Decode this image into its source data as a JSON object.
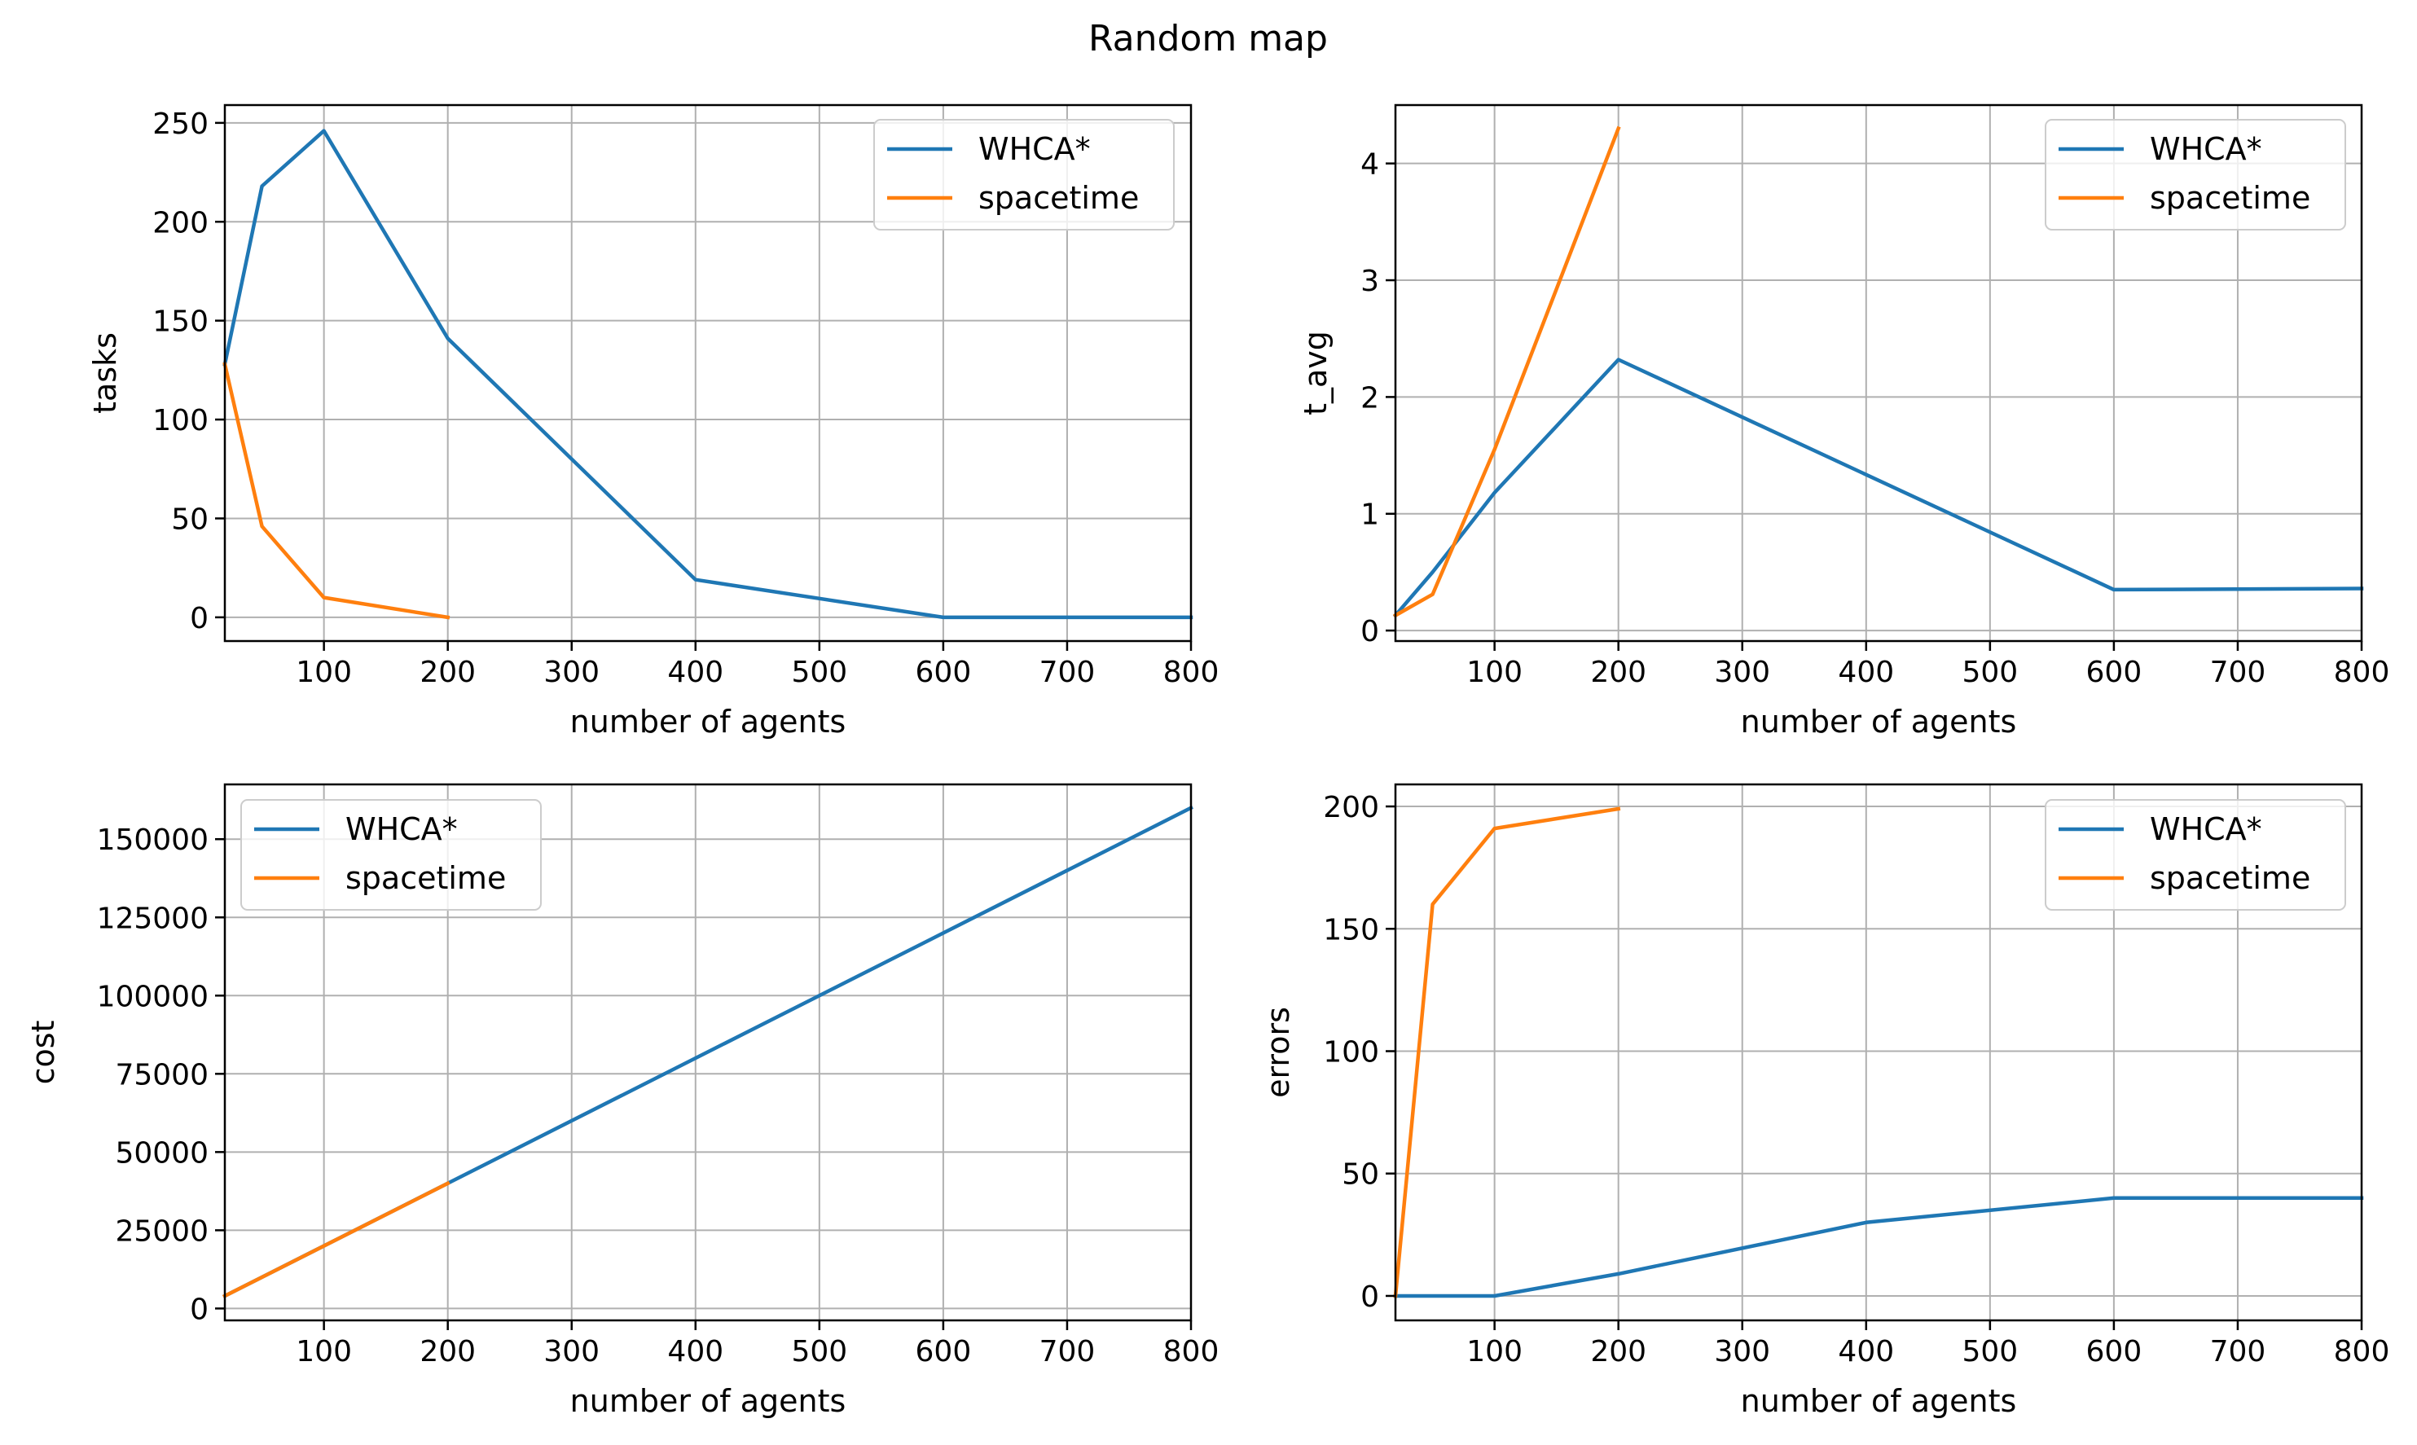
{
  "figure": {
    "title": "Random map"
  },
  "colors": {
    "whca": "#1f77b4",
    "spacetime": "#ff7f0e",
    "grid": "#b0b0b0",
    "frame": "#000000"
  },
  "chart_data": [
    {
      "id": "tasks",
      "type": "line",
      "xlabel": "number of agents",
      "ylabel": "tasks",
      "xlim": [
        20,
        800
      ],
      "ylim": [
        -12,
        259
      ],
      "xticks": [
        100,
        200,
        300,
        400,
        500,
        600,
        700,
        800
      ],
      "yticks": [
        0,
        50,
        100,
        150,
        200,
        250
      ],
      "grid": true,
      "legend": "top-right",
      "series": [
        {
          "name": "WHCA*",
          "color": "#1f77b4",
          "x": [
            20,
            50,
            100,
            200,
            400,
            600,
            800
          ],
          "y": [
            128,
            218,
            246,
            141,
            19,
            0,
            0
          ]
        },
        {
          "name": "spacetime",
          "color": "#ff7f0e",
          "x": [
            20,
            50,
            100,
            200
          ],
          "y": [
            128,
            46,
            10,
            0
          ]
        }
      ]
    },
    {
      "id": "t_avg",
      "type": "line",
      "xlabel": "number of agents",
      "ylabel": "t_avg",
      "xlim": [
        20,
        800
      ],
      "ylim": [
        -0.09,
        4.5
      ],
      "xticks": [
        100,
        200,
        300,
        400,
        500,
        600,
        700,
        800
      ],
      "yticks": [
        0,
        1,
        2,
        3,
        4
      ],
      "grid": true,
      "legend": "top-right",
      "series": [
        {
          "name": "WHCA*",
          "color": "#1f77b4",
          "x": [
            20,
            50,
            100,
            200,
            600,
            800
          ],
          "y": [
            0.13,
            0.5,
            1.18,
            2.32,
            0.35,
            0.36
          ]
        },
        {
          "name": "spacetime",
          "color": "#ff7f0e",
          "x": [
            20,
            50,
            100,
            200
          ],
          "y": [
            0.13,
            0.31,
            1.55,
            4.3
          ]
        }
      ]
    },
    {
      "id": "cost",
      "type": "line",
      "xlabel": "number of agents",
      "ylabel": "cost",
      "xlim": [
        20,
        800
      ],
      "ylim": [
        -3800,
        167500
      ],
      "xticks": [
        100,
        200,
        300,
        400,
        500,
        600,
        700,
        800
      ],
      "yticks": [
        0,
        25000,
        50000,
        75000,
        100000,
        125000,
        150000
      ],
      "grid": true,
      "legend": "top-left",
      "series": [
        {
          "name": "WHCA*",
          "color": "#1f77b4",
          "x": [
            20,
            800
          ],
          "y": [
            4000,
            160000
          ]
        },
        {
          "name": "spacetime",
          "color": "#ff7f0e",
          "x": [
            20,
            200
          ],
          "y": [
            4000,
            40000
          ]
        }
      ]
    },
    {
      "id": "errors",
      "type": "line",
      "xlabel": "number of agents",
      "ylabel": "errors",
      "xlim": [
        20,
        800
      ],
      "ylim": [
        -10,
        209
      ],
      "xticks": [
        100,
        200,
        300,
        400,
        500,
        600,
        700,
        800
      ],
      "yticks": [
        0,
        50,
        100,
        150,
        200
      ],
      "grid": true,
      "legend": "top-right",
      "series": [
        {
          "name": "WHCA*",
          "color": "#1f77b4",
          "x": [
            20,
            50,
            100,
            200,
            400,
            600,
            800
          ],
          "y": [
            0,
            0,
            0,
            9,
            30,
            40,
            40
          ]
        },
        {
          "name": "spacetime",
          "color": "#ff7f0e",
          "x": [
            20,
            50,
            100,
            200
          ],
          "y": [
            0,
            160,
            191,
            199
          ]
        }
      ]
    }
  ]
}
